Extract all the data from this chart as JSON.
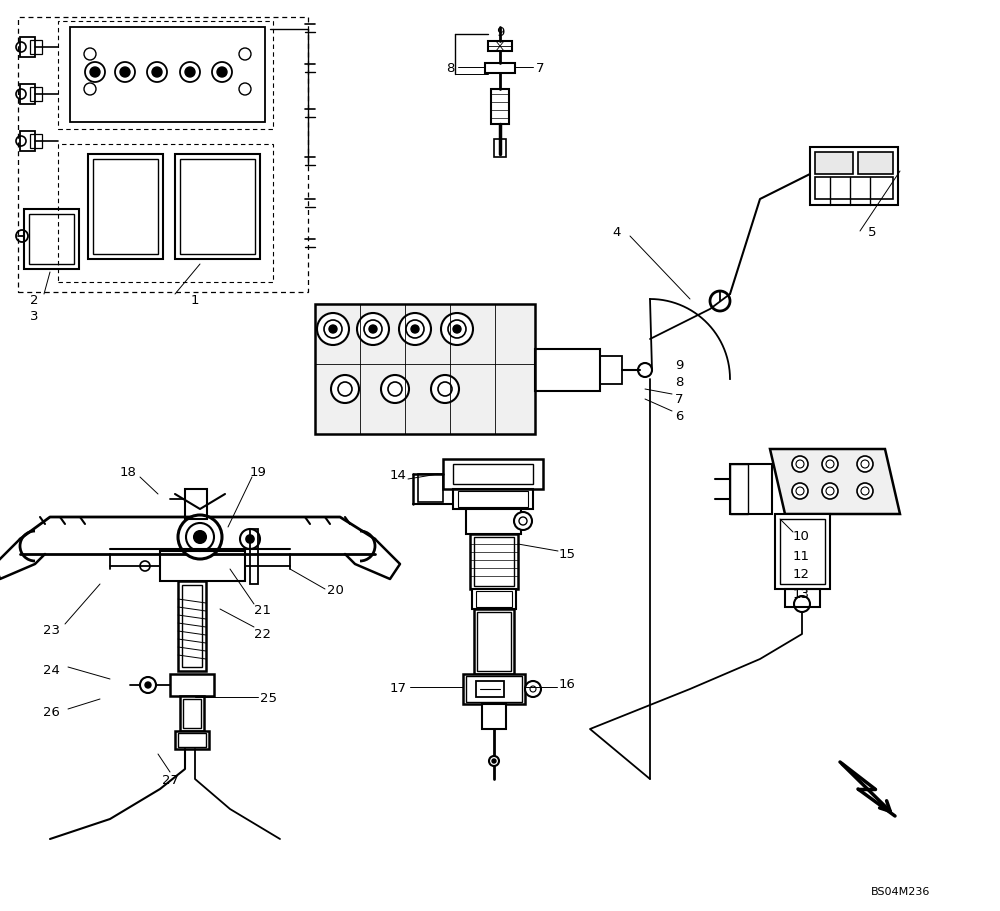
{
  "bg_color": "#ffffff",
  "line_color": "#000000",
  "fig_width": 10.0,
  "fig_height": 9.12,
  "dpi": 100,
  "watermark": "BS04M236",
  "font_size": 9.5,
  "lw_main": 1.5,
  "lw_thin": 0.8,
  "lw_callout": 0.7
}
